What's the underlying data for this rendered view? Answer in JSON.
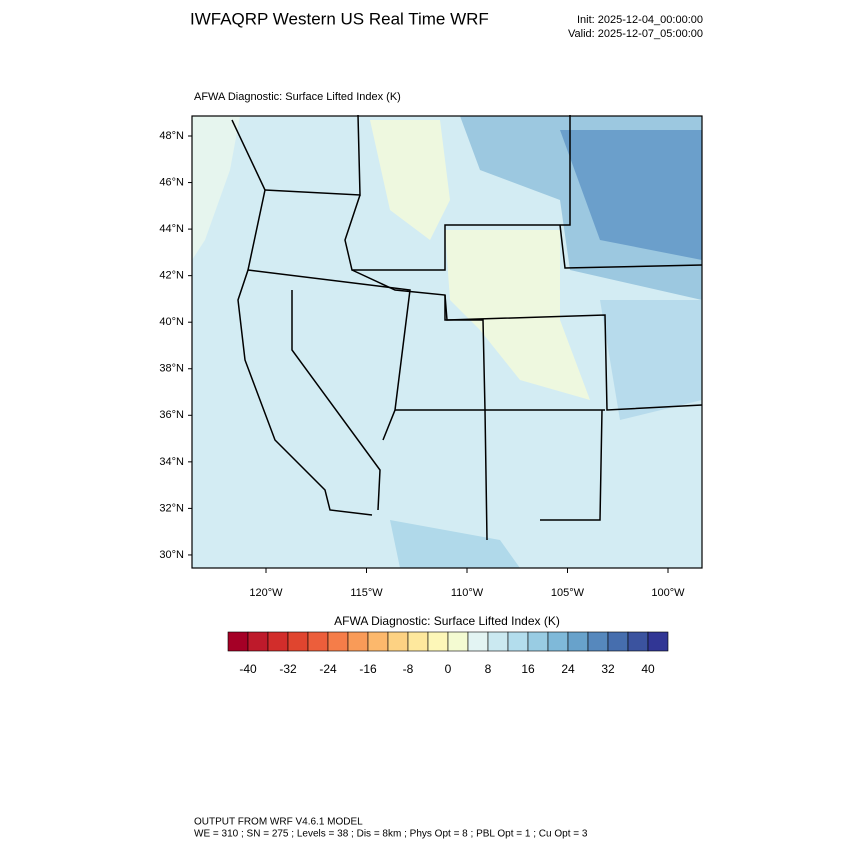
{
  "header": {
    "title": "IWFAQRP Western US Real Time WRF",
    "init": "Init: 2025-12-04_00:00:00",
    "valid": "Valid: 2025-12-07_05:00:00"
  },
  "map": {
    "subtitle": "AFWA Diagnostic: Surface Lifted Index   (K)",
    "lat_labels": [
      "48°N",
      "46°N",
      "44°N",
      "42°N",
      "40°N",
      "38°N",
      "36°N",
      "34°N",
      "32°N",
      "30°N"
    ],
    "lon_labels": [
      "120°W",
      "115°W",
      "110°W",
      "105°W",
      "100°W"
    ]
  },
  "colorbar": {
    "title": "AFWA Diagnostic: Surface Lifted Index  (K)",
    "ticks": [
      -40,
      -32,
      -24,
      -16,
      -8,
      0,
      8,
      16,
      24,
      32,
      40
    ],
    "colors": [
      "#a50026",
      "#be1a2b",
      "#d22d2b",
      "#e0452f",
      "#ec5e3b",
      "#f57d49",
      "#f99b58",
      "#fcb86c",
      "#fdd283",
      "#fee89d",
      "#fdf7b8",
      "#f4fbd2",
      "#e3f4f3",
      "#cbe9f1",
      "#b3dded",
      "#99cce3",
      "#7fb9d9",
      "#68a2cb",
      "#5688bd",
      "#466eae",
      "#3b539f",
      "#313695"
    ]
  },
  "footer": {
    "line1": "OUTPUT FROM WRF V4.6.1 MODEL",
    "line2": "WE = 310 ; SN = 275 ; Levels = 38 ; Dis = 8km ; Phys Opt = 8 ; PBL Opt = 1 ; Cu Opt = 3"
  }
}
